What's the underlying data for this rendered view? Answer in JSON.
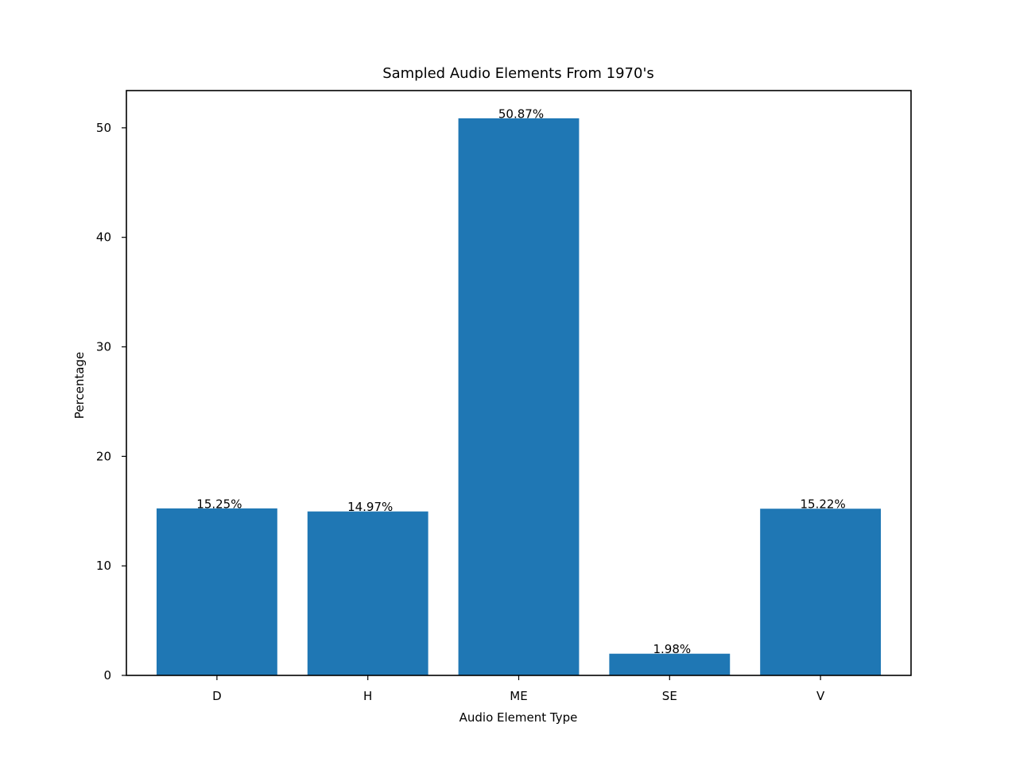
{
  "chart_data": {
    "type": "bar",
    "title": "Sampled Audio Elements From 1970's",
    "xlabel": "Audio Element Type",
    "ylabel": "Percentage",
    "categories": [
      "D",
      "H",
      "ME",
      "SE",
      "V"
    ],
    "values": [
      15.25,
      14.97,
      50.87,
      1.98,
      15.22
    ],
    "data_labels": [
      "15.25%",
      "14.97%",
      "50.87%",
      "1.98%",
      "15.22%"
    ],
    "ylim": [
      0,
      53.4
    ],
    "yticks": [
      0,
      10,
      20,
      30,
      40,
      50
    ],
    "grid": false,
    "bar_color": "#1f77b4"
  }
}
